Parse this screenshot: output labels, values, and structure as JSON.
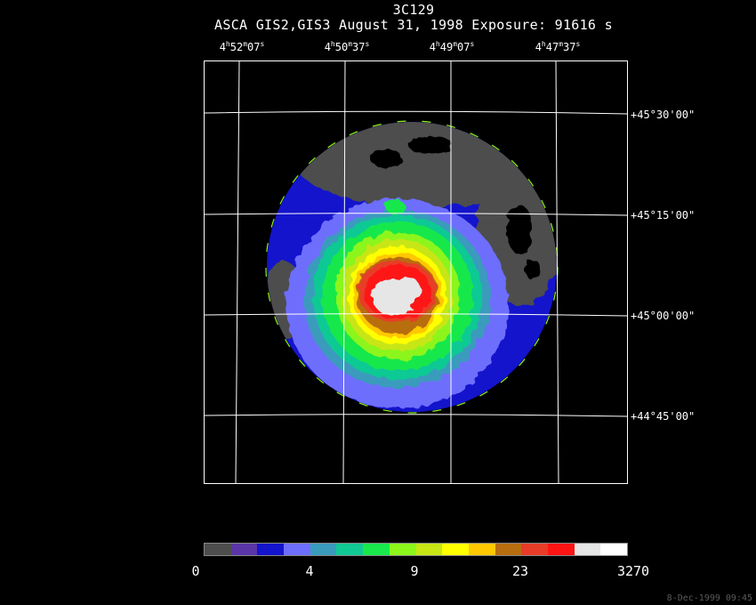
{
  "title": "3C129",
  "subtitle": "ASCA GIS2,GIS3 August 31, 1998 Exposure: 91616 s",
  "ra_labels": [
    {
      "h": "4",
      "m": "52",
      "s": "07"
    },
    {
      "h": "4",
      "m": "50",
      "s": "37"
    },
    {
      "h": "4",
      "m": "49",
      "s": "07"
    },
    {
      "h": "4",
      "m": "47",
      "s": "37"
    }
  ],
  "dec_labels": [
    "+45°30'00\"",
    "+45°15'00\"",
    "+45°00'00\"",
    "+44°45'00\""
  ],
  "colorbar": {
    "colors": [
      "#4d4d4d",
      "#5a35a8",
      "#1414cc",
      "#6e6efc",
      "#3a9bbd",
      "#10c994",
      "#18e84c",
      "#8cf51a",
      "#c8e614",
      "#ffff00",
      "#ffc800",
      "#b86e10",
      "#e83c28",
      "#ff1414",
      "#e6e6e6",
      "#ffffff"
    ],
    "tick_labels": [
      "0",
      "4",
      "9",
      "23",
      "3270"
    ]
  },
  "timestamp": "8-Dec-1999 09:45",
  "colors": {
    "background": "#000000",
    "grid": "#ffffff",
    "text": "#ffffff"
  }
}
